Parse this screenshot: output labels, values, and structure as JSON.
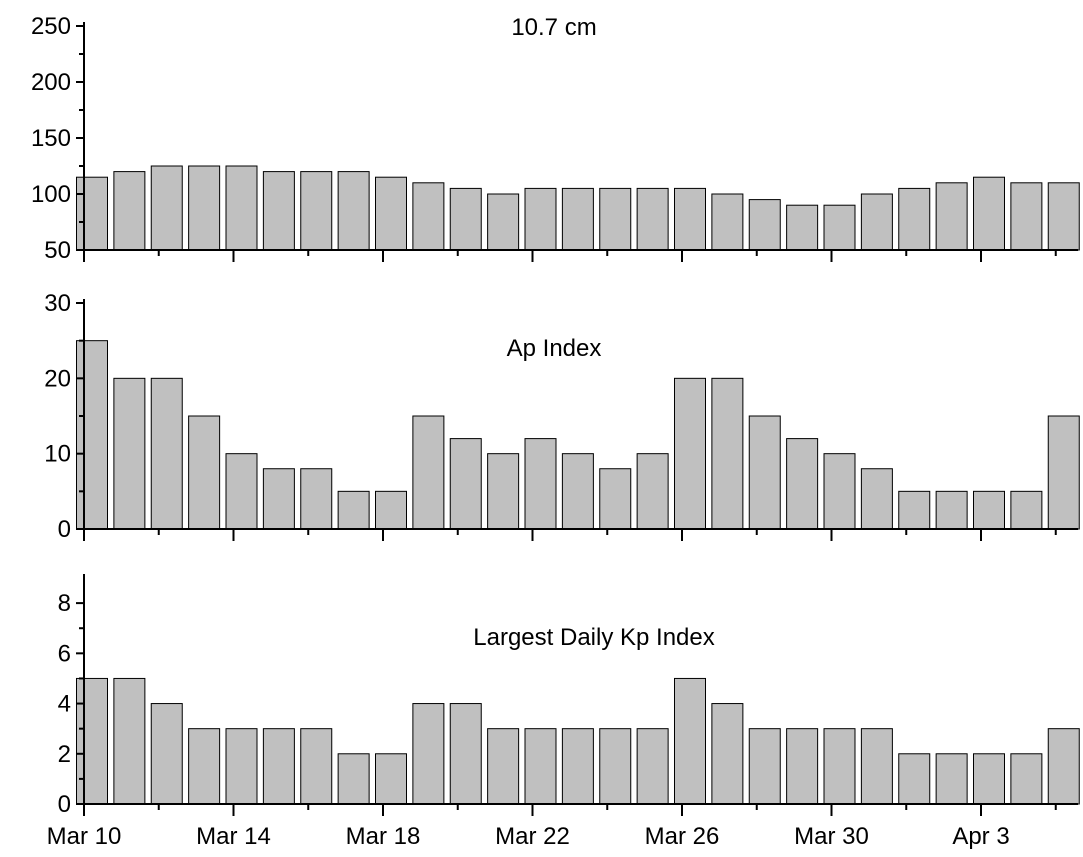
{
  "chart_data": [
    {
      "type": "bar",
      "title": "10.7 cm",
      "ylim": [
        50,
        250
      ],
      "yticks": [
        50,
        100,
        150,
        200,
        250
      ],
      "yminor": [
        75,
        125,
        175,
        225
      ],
      "bar_color": "#c0c0c0",
      "x": [
        "Mar 10",
        "Mar 11",
        "Mar 12",
        "Mar 13",
        "Mar 14",
        "Mar 15",
        "Mar 16",
        "Mar 17",
        "Mar 18",
        "Mar 19",
        "Mar 20",
        "Mar 21",
        "Mar 22",
        "Mar 23",
        "Mar 24",
        "Mar 25",
        "Mar 26",
        "Mar 27",
        "Mar 28",
        "Mar 29",
        "Mar 30",
        "Mar 31",
        "Apr 1",
        "Apr 2",
        "Apr 3",
        "Apr 4",
        "Apr 5"
      ],
      "values": [
        115,
        120,
        125,
        125,
        125,
        120,
        120,
        120,
        115,
        110,
        105,
        100,
        105,
        105,
        105,
        105,
        105,
        100,
        95,
        90,
        90,
        100,
        105,
        110,
        115,
        110,
        110
      ]
    },
    {
      "type": "bar",
      "title": "Ap Index",
      "ylim": [
        0,
        30
      ],
      "yticks": [
        0,
        10,
        20,
        30
      ],
      "yminor": [
        5,
        15,
        25
      ],
      "bar_color": "#c0c0c0",
      "x": [
        "Mar 10",
        "Mar 11",
        "Mar 12",
        "Mar 13",
        "Mar 14",
        "Mar 15",
        "Mar 16",
        "Mar 17",
        "Mar 18",
        "Mar 19",
        "Mar 20",
        "Mar 21",
        "Mar 22",
        "Mar 23",
        "Mar 24",
        "Mar 25",
        "Mar 26",
        "Mar 27",
        "Mar 28",
        "Mar 29",
        "Mar 30",
        "Mar 31",
        "Apr 1",
        "Apr 2",
        "Apr 3",
        "Apr 4",
        "Apr 5"
      ],
      "values": [
        25,
        20,
        20,
        15,
        10,
        8,
        8,
        5,
        5,
        15,
        12,
        10,
        12,
        10,
        8,
        10,
        20,
        20,
        15,
        12,
        10,
        8,
        5,
        5,
        5,
        5,
        15
      ]
    },
    {
      "type": "bar",
      "title": "Largest Daily Kp Index",
      "ylim": [
        0,
        9
      ],
      "yticks": [
        0,
        2,
        4,
        6,
        8
      ],
      "yminor": [
        1,
        3,
        5,
        7
      ],
      "bar_color": "#c0c0c0",
      "x": [
        "Mar 10",
        "Mar 11",
        "Mar 12",
        "Mar 13",
        "Mar 14",
        "Mar 15",
        "Mar 16",
        "Mar 17",
        "Mar 18",
        "Mar 19",
        "Mar 20",
        "Mar 21",
        "Mar 22",
        "Mar 23",
        "Mar 24",
        "Mar 25",
        "Mar 26",
        "Mar 27",
        "Mar 28",
        "Mar 29",
        "Mar 30",
        "Mar 31",
        "Apr 1",
        "Apr 2",
        "Apr 3",
        "Apr 4",
        "Apr 5"
      ],
      "values": [
        5,
        5,
        4,
        3,
        3,
        3,
        3,
        2,
        2,
        4,
        4,
        3,
        3,
        3,
        3,
        3,
        5,
        4,
        3,
        3,
        3,
        3,
        2,
        2,
        2,
        2,
        3
      ],
      "xtick_labels": [
        "Mar 10",
        "Mar 14",
        "Mar 18",
        "Mar 22",
        "Mar 26",
        "Mar 30",
        "Apr 3"
      ]
    }
  ]
}
